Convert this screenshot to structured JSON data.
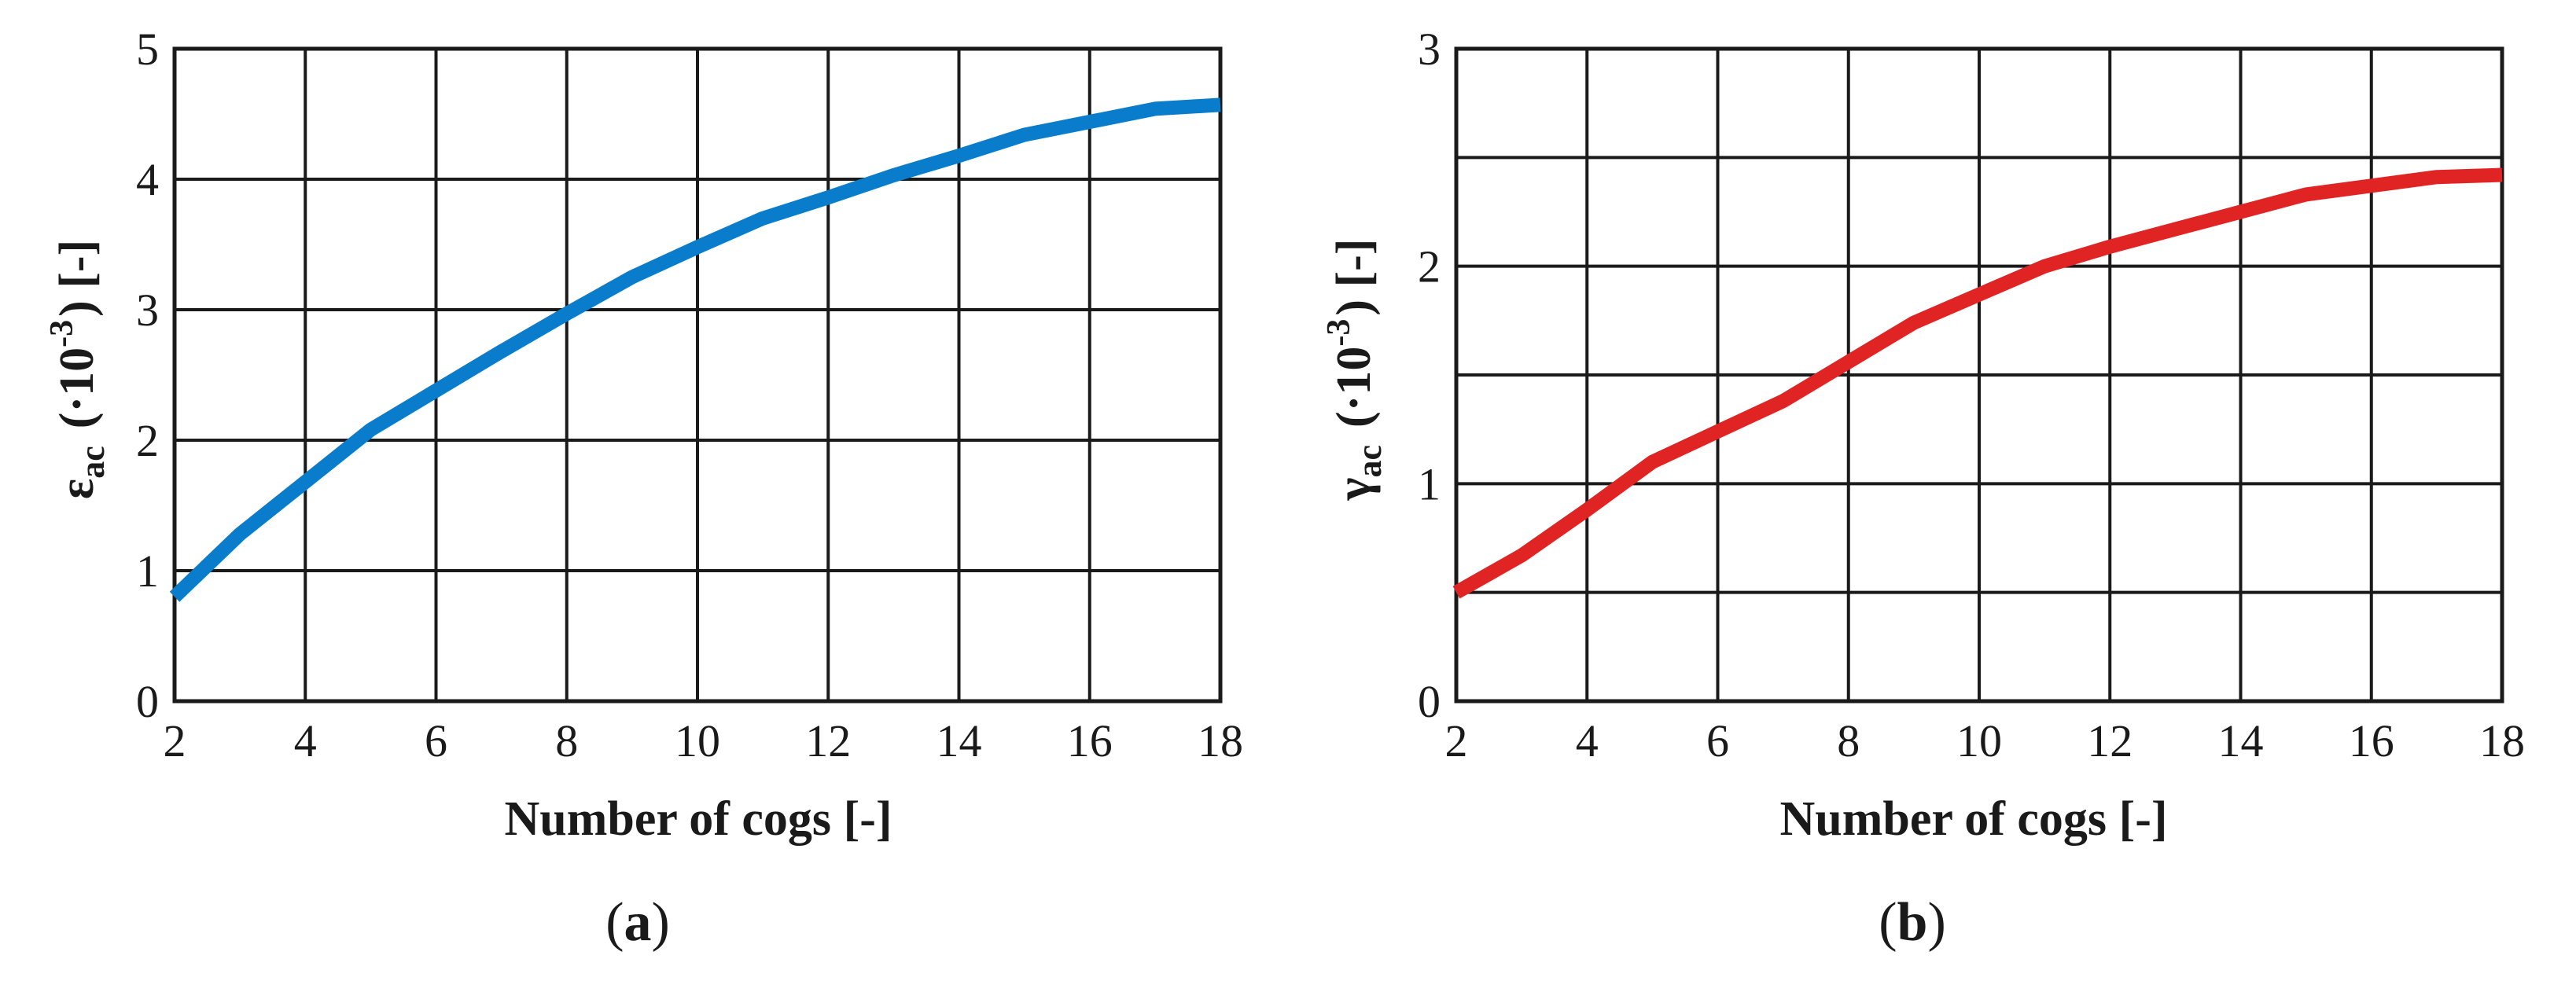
{
  "chart_data": [
    {
      "type": "line",
      "panel_label": "a",
      "xlabel": "Number of cogs [-]",
      "ylabel": {
        "symbol": "ε",
        "subscript": "ac",
        "scale": "(·10",
        "exponent": "-3",
        "unit": ") [-]"
      },
      "xlim": [
        2,
        18
      ],
      "ylim": [
        0,
        5
      ],
      "xticks": [
        2,
        4,
        6,
        8,
        10,
        12,
        14,
        16,
        18
      ],
      "yticks": [
        0,
        1,
        2,
        3,
        4,
        5
      ],
      "xgrid": [
        2,
        4,
        6,
        8,
        10,
        12,
        14,
        16,
        18
      ],
      "ygrid": [
        0,
        1,
        2,
        3,
        4,
        5
      ],
      "grid": true,
      "series": [
        {
          "color": "#0a7ccc",
          "x": [
            2,
            3,
            4,
            5,
            6,
            7,
            8,
            9,
            10,
            11,
            12,
            13,
            14,
            15,
            16,
            17,
            18
          ],
          "y": [
            0.8,
            1.28,
            1.68,
            2.08,
            2.38,
            2.68,
            2.97,
            3.25,
            3.48,
            3.7,
            3.86,
            4.03,
            4.18,
            4.34,
            4.44,
            4.54,
            4.57
          ]
        }
      ]
    },
    {
      "type": "line",
      "panel_label": "b",
      "xlabel": "Number of cogs [-]",
      "ylabel": {
        "symbol": "γ",
        "subscript": "ac",
        "scale": "(·10",
        "exponent": "-3",
        "unit": ") [-]"
      },
      "xlim": [
        2,
        18
      ],
      "ylim": [
        0,
        3
      ],
      "xticks": [
        2,
        4,
        6,
        8,
        10,
        12,
        14,
        16,
        18
      ],
      "yticks": [
        0,
        1,
        2,
        3
      ],
      "xgrid": [
        2,
        4,
        6,
        8,
        10,
        12,
        14,
        16,
        18
      ],
      "ygrid": [
        0,
        0.5,
        1,
        1.5,
        2,
        2.5,
        3
      ],
      "grid": true,
      "series": [
        {
          "color": "#e02424",
          "x": [
            2,
            3,
            4,
            5,
            6,
            7,
            8,
            9,
            10,
            11,
            12,
            13,
            14,
            15,
            16,
            17,
            18
          ],
          "y": [
            0.5,
            0.67,
            0.88,
            1.1,
            1.24,
            1.38,
            1.56,
            1.74,
            1.87,
            2.0,
            2.09,
            2.17,
            2.25,
            2.33,
            2.37,
            2.41,
            2.42
          ]
        }
      ]
    }
  ]
}
